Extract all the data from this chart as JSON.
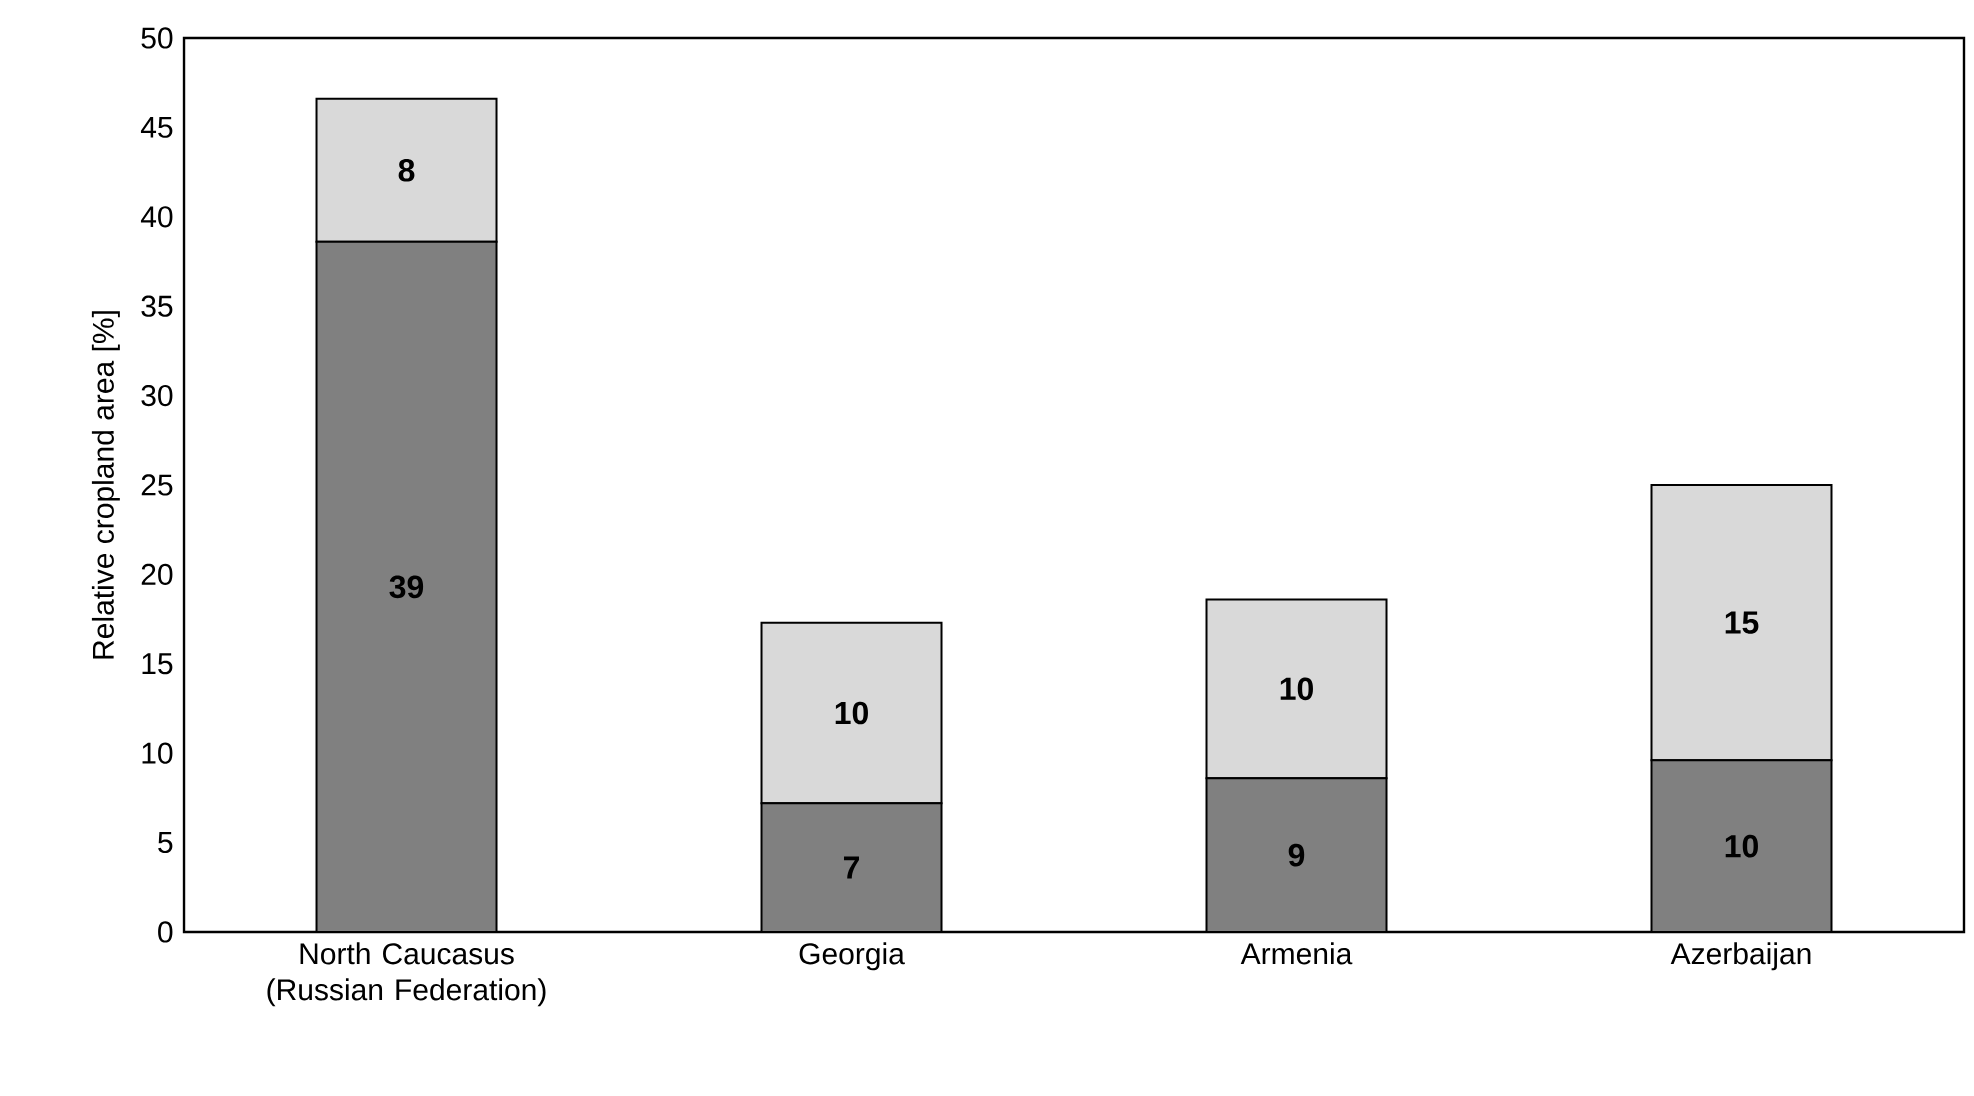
{
  "chart_data": {
    "type": "bar",
    "stacked": true,
    "ylabel": "Relative cropland area [%]",
    "categories": [
      "North Caucasus (Russian Federation)",
      "Georgia",
      "Armenia",
      "Azerbaijan"
    ],
    "series": [
      {
        "color": "#808080",
        "values": [
          38.6,
          7.2,
          8.6,
          9.6
        ],
        "value_labels": [
          "39",
          "7",
          "9",
          "10"
        ]
      },
      {
        "color": "#d9d9d9",
        "values": [
          8.0,
          10.1,
          10.0,
          15.4
        ],
        "value_labels": [
          "8",
          "10",
          "10",
          "15"
        ]
      }
    ],
    "ylim": [
      0,
      50
    ],
    "yticks": [
      0,
      5,
      10,
      15,
      20,
      25,
      30,
      35,
      40,
      45,
      50
    ]
  }
}
